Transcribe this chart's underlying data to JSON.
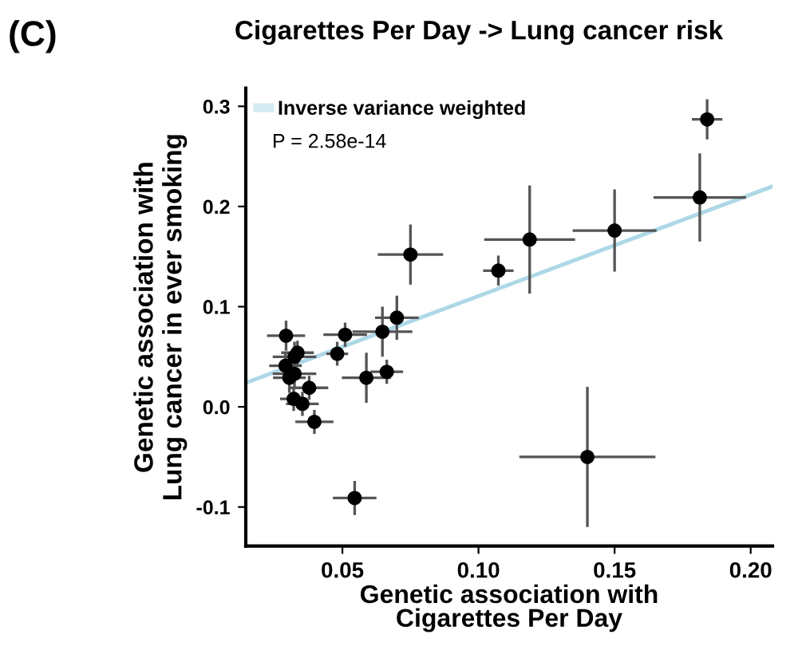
{
  "chart_data": {
    "type": "scatter",
    "title": "Cigarettes Per Day -> Lung cancer risk",
    "xlabel": "Genetic association with\nCigarettes Per Day",
    "ylabel": "Genetic association with\nLung cancer in ever smoking",
    "annotations": [
      "(C)",
      "P = 2.58e-14"
    ],
    "series": [
      {
        "marker": "circle",
        "color": "#000000",
        "x": [
          0.0293,
          0.0335,
          0.0324,
          0.0291,
          0.0324,
          0.0305,
          0.0378,
          0.0321,
          0.0353,
          0.0397,
          0.0545,
          0.0481,
          0.051,
          0.0588,
          0.0647,
          0.07,
          0.0663,
          0.075,
          0.1073,
          0.1188,
          0.15,
          0.1813,
          0.184,
          0.14
        ],
        "values": [
          0.071,
          0.054,
          0.05,
          0.041,
          0.033,
          0.029,
          0.019,
          0.008,
          0.003,
          -0.015,
          -0.091,
          0.053,
          0.072,
          0.029,
          0.075,
          0.089,
          0.035,
          0.152,
          0.136,
          0.167,
          0.176,
          0.209,
          0.287,
          -0.05
        ],
        "xerrors": [
          0.007,
          0.006,
          0.008,
          0.006,
          0.008,
          0.006,
          0.007,
          0.005,
          0.006,
          0.007,
          0.008,
          0.004,
          0.008,
          0.009,
          0.011,
          0.008,
          0.006,
          0.012,
          0.0056,
          0.0167,
          0.0154,
          0.017,
          0.0056,
          0.025
        ],
        "errors": [
          0.015,
          0.012,
          0.015,
          0.012,
          0.015,
          0.015,
          0.012,
          0.012,
          0.012,
          0.012,
          0.017,
          0.012,
          0.012,
          0.025,
          0.025,
          0.022,
          0.012,
          0.03,
          0.015,
          0.054,
          0.041,
          0.044,
          0.02,
          0.07
        ]
      },
      {
        "type": "line",
        "name": "Inverse variance weighted",
        "color": "#add8e6",
        "x": [
          0.0145,
          0.208
        ],
        "values": [
          0.024,
          0.22
        ]
      }
    ],
    "xlim": [
      0.0145,
      0.208
    ],
    "ylim": [
      -0.139,
      0.318
    ],
    "xticks": [
      0.05,
      {
        "value": 0.1,
        "label": "0.10"
      },
      {
        "value": 0.15,
        "label": "0.15"
      },
      {
        "value": 0.2,
        "label": "0.20"
      }
    ],
    "yticks": [
      -0.1,
      {
        "value": 0,
        "label": "0.0"
      },
      0.1,
      0.2,
      0.3
    ],
    "grid": false,
    "legend": "top left"
  }
}
